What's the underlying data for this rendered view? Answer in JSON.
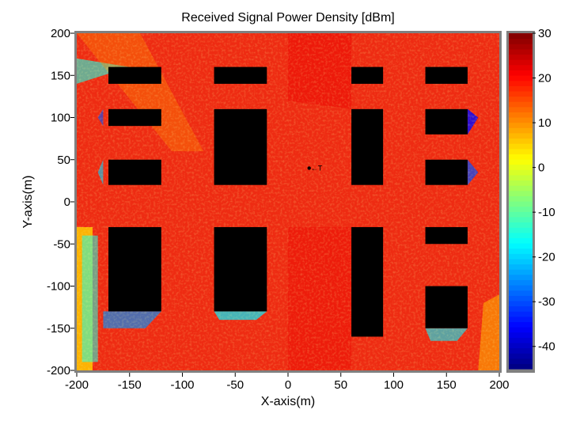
{
  "chart_data": {
    "type": "heatmap",
    "title": "Received Signal Power Density [dBm]",
    "xlabel": "X-axis(m)",
    "ylabel": "Y-axis(m)",
    "xlim": [
      -200,
      200
    ],
    "ylim": [
      -200,
      200
    ],
    "x_ticks": [
      -200,
      -150,
      -100,
      -50,
      0,
      50,
      100,
      150,
      200
    ],
    "y_ticks": [
      -200,
      -150,
      -100,
      -50,
      0,
      50,
      100,
      150,
      200
    ],
    "colorbar": {
      "min": -45,
      "max": 30,
      "ticks": [
        30,
        20,
        10,
        0,
        -10,
        -20,
        -30,
        -40
      ],
      "colormap": "jet"
    },
    "buildings": [
      {
        "x0": -170,
        "x1": -120,
        "y0": 140,
        "y1": 160
      },
      {
        "x0": -170,
        "x1": -120,
        "y0": 90,
        "y1": 110
      },
      {
        "x0": -170,
        "x1": -120,
        "y0": 20,
        "y1": 50
      },
      {
        "x0": -170,
        "x1": -120,
        "y0": -130,
        "y1": -30
      },
      {
        "x0": -70,
        "x1": -20,
        "y0": 140,
        "y1": 160
      },
      {
        "x0": -70,
        "x1": -20,
        "y0": 20,
        "y1": 110
      },
      {
        "x0": -70,
        "x1": -20,
        "y0": -130,
        "y1": -30
      },
      {
        "x0": 60,
        "x1": 90,
        "y0": 140,
        "y1": 160
      },
      {
        "x0": 60,
        "x1": 90,
        "y0": 20,
        "y1": 110
      },
      {
        "x0": 60,
        "x1": 90,
        "y0": -160,
        "y1": -30
      },
      {
        "x0": 130,
        "x1": 170,
        "y0": 140,
        "y1": 160
      },
      {
        "x0": 130,
        "x1": 170,
        "y0": 80,
        "y1": 110
      },
      {
        "x0": 130,
        "x1": 170,
        "y0": 20,
        "y1": 50
      },
      {
        "x0": 130,
        "x1": 170,
        "y0": -50,
        "y1": -30
      },
      {
        "x0": 130,
        "x1": 170,
        "y0": -150,
        "y1": -100
      }
    ],
    "transmitter": {
      "x": 20,
      "y": 40,
      "label": "←T"
    }
  }
}
